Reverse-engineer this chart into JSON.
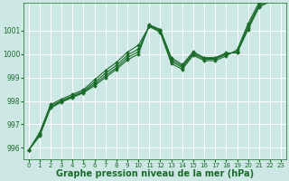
{
  "bg_color": "#cde8e4",
  "grid_color": "#b0d8d2",
  "line_color": "#1a6b2a",
  "marker_color": "#1a6b2a",
  "xlabel": "Graphe pression niveau de la mer (hPa)",
  "xlabel_fontsize": 7,
  "ylim": [
    995.5,
    1002.2
  ],
  "xlim": [
    -0.5,
    23.5
  ],
  "yticks": [
    996,
    997,
    998,
    999,
    1000,
    1001
  ],
  "xticks": [
    0,
    1,
    2,
    3,
    4,
    5,
    6,
    7,
    8,
    9,
    10,
    11,
    12,
    13,
    14,
    15,
    16,
    17,
    18,
    19,
    20,
    21,
    22,
    23
  ],
  "series": [
    [
      995.9,
      996.5,
      997.7,
      997.95,
      998.15,
      998.35,
      998.65,
      999.0,
      999.35,
      999.75,
      1000.0,
      1001.25,
      1001.05,
      999.85,
      999.55,
      1000.1,
      999.85,
      999.85,
      1000.05,
      1000.05,
      1001.05,
      1002.0,
      1002.25,
      1002.35
    ],
    [
      995.9,
      996.55,
      997.75,
      997.98,
      998.18,
      998.38,
      998.72,
      999.08,
      999.42,
      999.85,
      1000.1,
      1001.22,
      1001.02,
      999.78,
      999.48,
      1000.05,
      999.82,
      999.82,
      1000.02,
      1000.08,
      1001.12,
      1002.05,
      1002.3,
      1002.4
    ],
    [
      995.9,
      996.6,
      997.8,
      998.02,
      998.22,
      998.42,
      998.8,
      999.18,
      999.52,
      999.95,
      1000.22,
      1001.2,
      1000.98,
      999.7,
      999.42,
      1000.0,
      999.78,
      999.78,
      999.98,
      1000.12,
      1001.2,
      1002.12,
      1002.38,
      1002.48
    ],
    [
      995.9,
      996.65,
      997.85,
      998.08,
      998.28,
      998.48,
      998.9,
      999.3,
      999.65,
      1000.08,
      1000.38,
      1001.18,
      1000.92,
      999.6,
      999.35,
      999.95,
      999.72,
      999.72,
      999.92,
      1000.18,
      1001.3,
      1002.2,
      1002.45,
      1002.55
    ]
  ]
}
